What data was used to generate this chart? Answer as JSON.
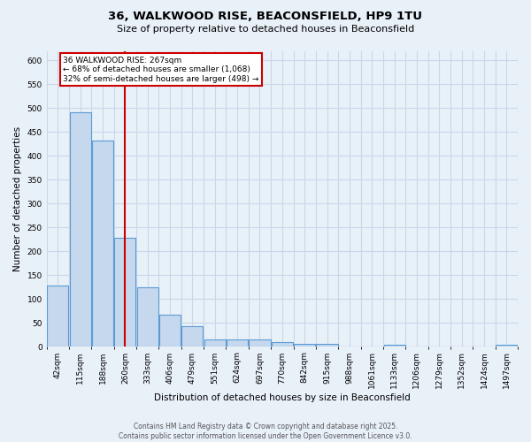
{
  "title": "36, WALKWOOD RISE, BEACONSFIELD, HP9 1TU",
  "subtitle": "Size of property relative to detached houses in Beaconsfield",
  "xlabel": "Distribution of detached houses by size in Beaconsfield",
  "ylabel": "Number of detached properties",
  "bin_labels": [
    "42sqm",
    "115sqm",
    "188sqm",
    "260sqm",
    "333sqm",
    "406sqm",
    "479sqm",
    "551sqm",
    "624sqm",
    "697sqm",
    "770sqm",
    "842sqm",
    "915sqm",
    "988sqm",
    "1061sqm",
    "1133sqm",
    "1206sqm",
    "1279sqm",
    "1352sqm",
    "1424sqm",
    "1497sqm"
  ],
  "bin_values": [
    128,
    492,
    432,
    228,
    124,
    68,
    44,
    16,
    16,
    15,
    11,
    6,
    6,
    0,
    0,
    5,
    0,
    0,
    0,
    0,
    4
  ],
  "bar_color": "#c5d8ed",
  "bar_edge_color": "#5b9bd5",
  "vline_x_index": 3,
  "annotation_text_line1": "36 WALKWOOD RISE: 267sqm",
  "annotation_text_line2": "← 68% of detached houses are smaller (1,068)",
  "annotation_text_line3": "32% of semi-detached houses are larger (498) →",
  "annotation_box_color": "#ffffff",
  "annotation_box_edge_color": "#cc0000",
  "ylim": [
    0,
    620
  ],
  "yticks": [
    0,
    50,
    100,
    150,
    200,
    250,
    300,
    350,
    400,
    450,
    500,
    550,
    600
  ],
  "grid_color": "#c8d8e8",
  "background_color": "#e8f0f8",
  "footer_line1": "Contains HM Land Registry data © Crown copyright and database right 2025.",
  "footer_line2": "Contains public sector information licensed under the Open Government Licence v3.0."
}
